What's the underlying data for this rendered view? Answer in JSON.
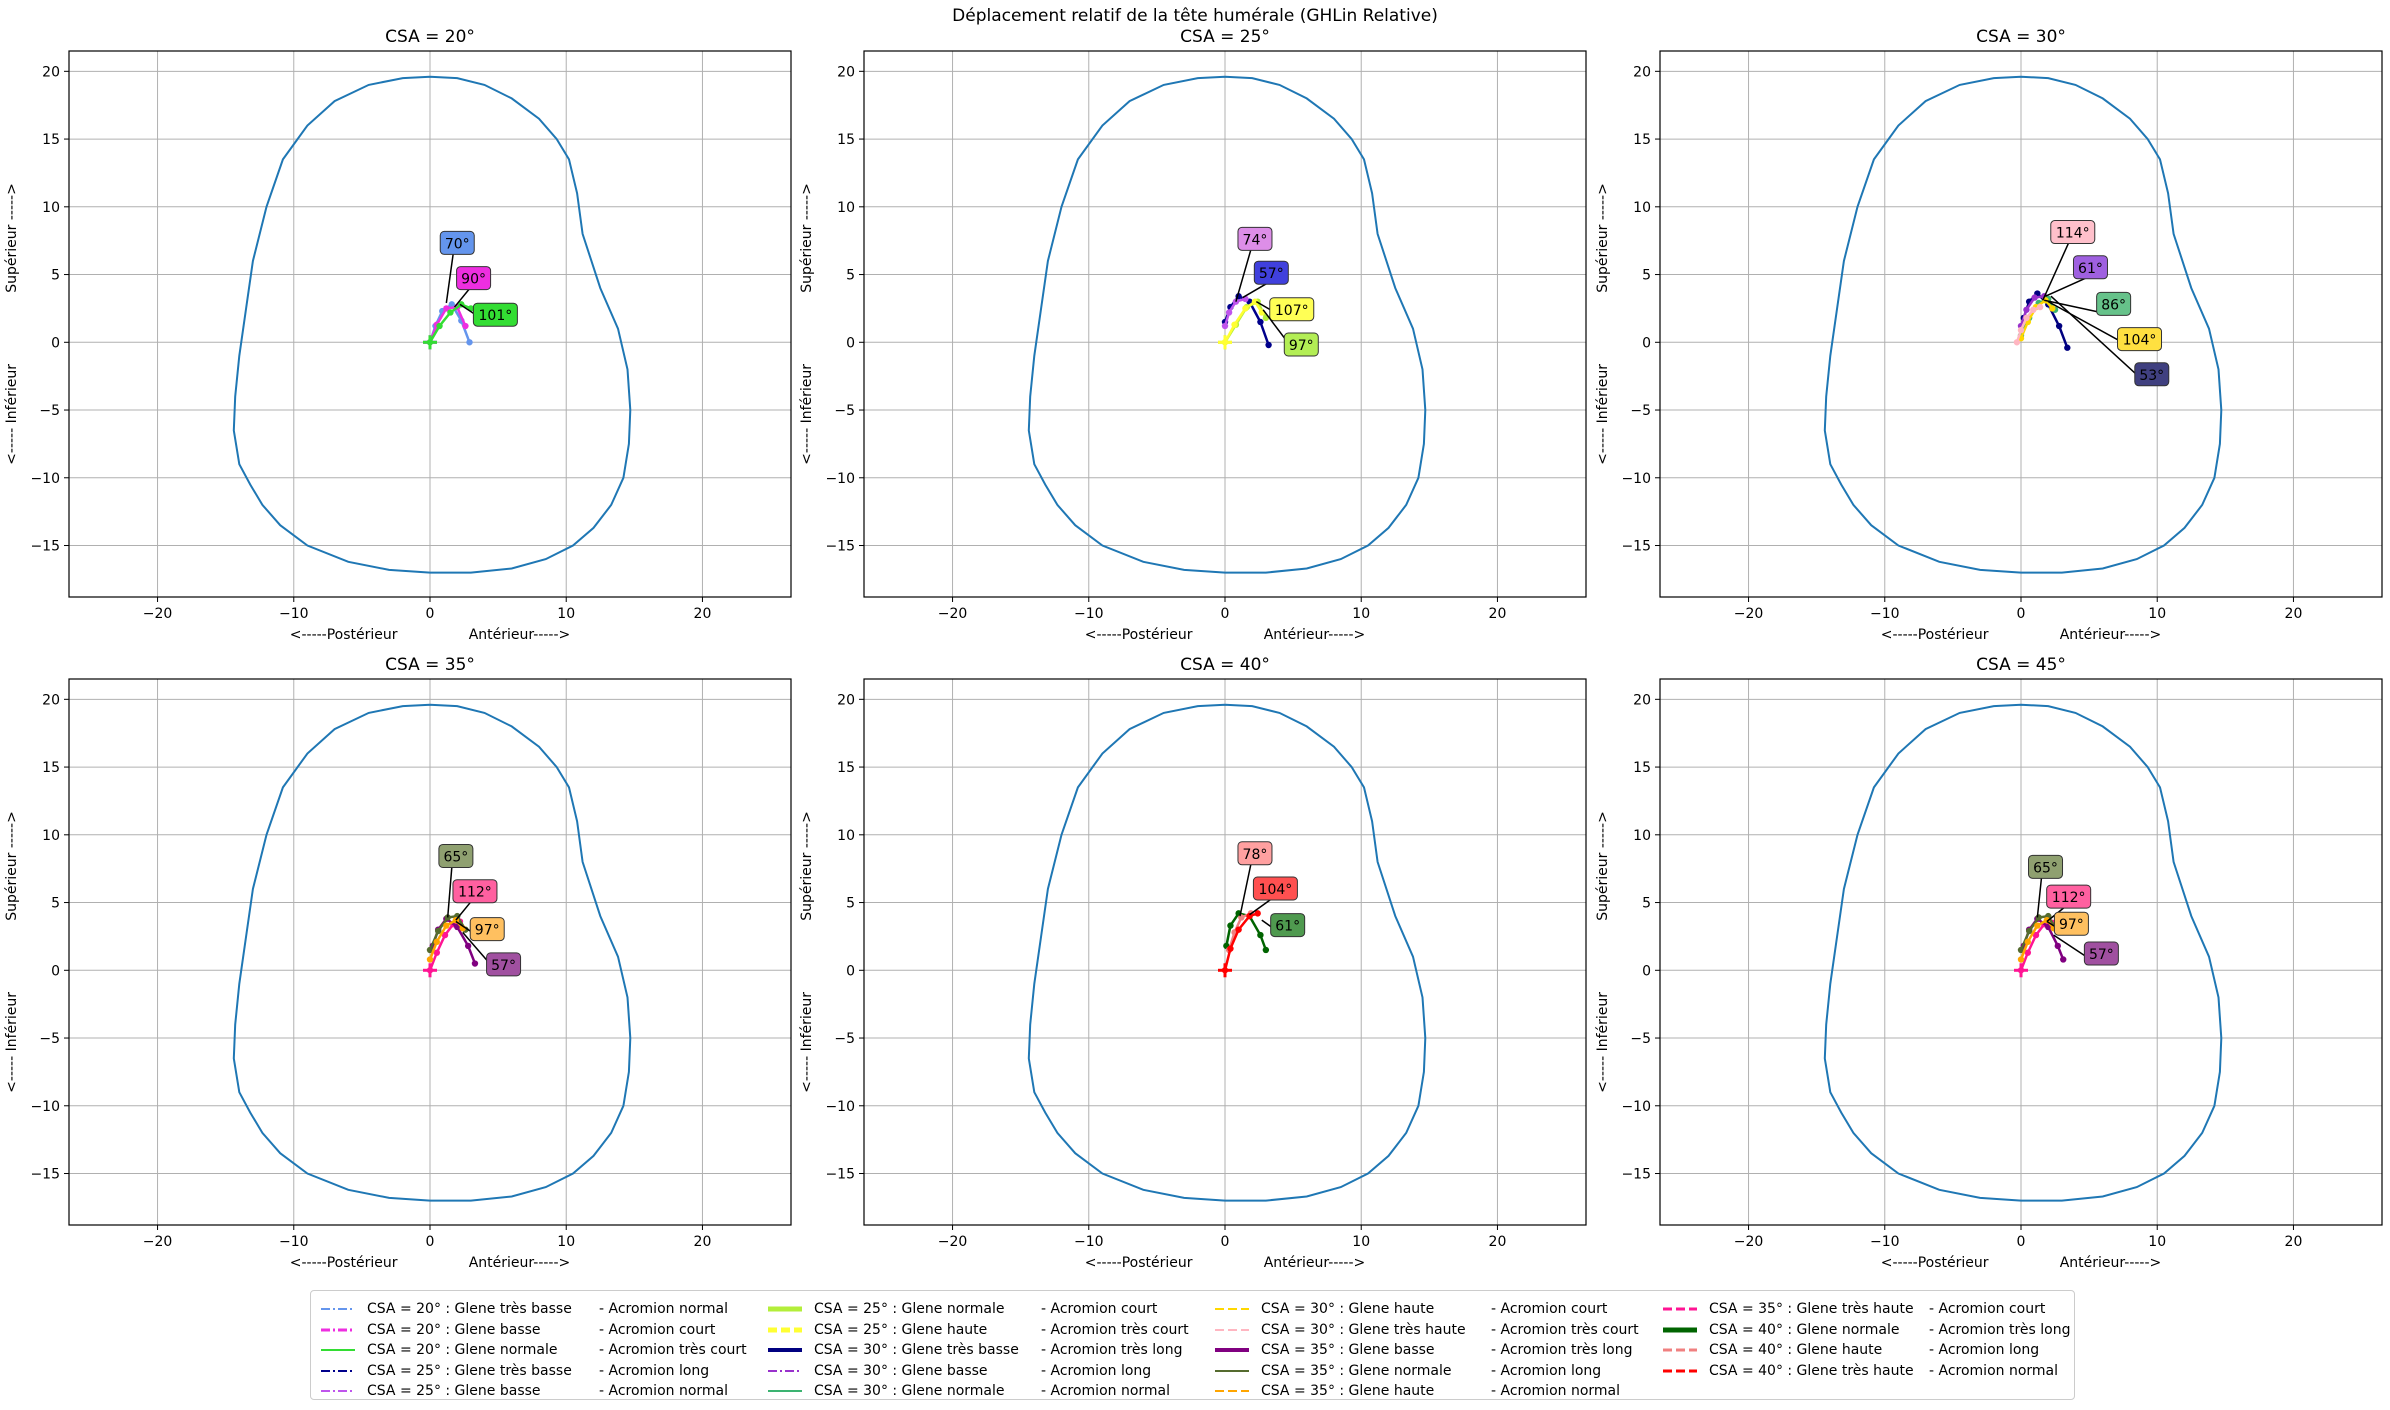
{
  "figure": {
    "title": "Déplacement relatif de la tête humérale (GHLin Relative)",
    "outline_color": "#1f77b4"
  },
  "chart_data": [
    {
      "type": "line",
      "title": "CSA = 20°",
      "xlabel": "<-----Postérieur                Antérieur----->",
      "ylabel": "<----- Inférieur                Supérieur ----->",
      "xlim": [
        -26.5,
        26.5
      ],
      "ylim": [
        -18.8,
        21.5
      ],
      "xticks": [
        -20,
        -10,
        0,
        10,
        20
      ],
      "yticks": [
        -15,
        -10,
        -5,
        0,
        5,
        10,
        15,
        20
      ],
      "grid": true,
      "series": [
        {
          "name": "CSA = 20° : Glene très basse",
          "color": "#6495ed",
          "x": [
            0,
            0.4,
            0.9,
            1.6,
            2.3,
            2.9
          ],
          "y": [
            0,
            1.2,
            2.3,
            2.8,
            1.6,
            0
          ]
        },
        {
          "name": "CSA = 20° : Glene basse",
          "color": "#ee2ee0",
          "x": [
            0,
            0.5,
            1.2,
            2.0,
            2.6
          ],
          "y": [
            0,
            1.3,
            2.5,
            2.6,
            1.2
          ]
        },
        {
          "name": "CSA = 20° : Glene normale",
          "color": "#33dd33",
          "x": [
            0,
            0.7,
            1.5,
            2.3,
            3.0
          ],
          "y": [
            0,
            1.2,
            2.2,
            2.8,
            2.5
          ]
        }
      ],
      "annotations": [
        {
          "label": "70°",
          "color": "#6495ed",
          "x": 2.0,
          "y": 7.3,
          "tx": 1.2,
          "ty": 2.9
        },
        {
          "label": "90°",
          "color": "#ee2ee0",
          "x": 3.2,
          "y": 4.7,
          "tx": 1.8,
          "ty": 2.6
        },
        {
          "label": "101°",
          "color": "#33dd33",
          "x": 4.8,
          "y": 2.0,
          "tx": 2.2,
          "ty": 2.8
        }
      ]
    },
    {
      "type": "line",
      "title": "CSA = 25°",
      "xlabel": "<-----Postérieur                Antérieur----->",
      "ylabel": "<----- Inférieur                Supérieur ----->",
      "xlim": [
        -26.5,
        26.5
      ],
      "ylim": [
        -18.8,
        21.5
      ],
      "xticks": [
        -20,
        -10,
        0,
        10,
        20
      ],
      "yticks": [
        -15,
        -10,
        -5,
        0,
        5,
        10,
        15,
        20
      ],
      "grid": true,
      "series": [
        {
          "name": "CSA = 25° : Glene très basse",
          "color": "#00008b",
          "x": [
            0,
            0.4,
            1.0,
            1.8,
            2.6,
            3.2
          ],
          "y": [
            1.5,
            2.6,
            3.4,
            3.0,
            1.5,
            -0.2
          ]
        },
        {
          "name": "CSA = 25° : Glene basse",
          "color": "#bf55ec",
          "x": [
            0,
            0.3,
            0.8,
            1.5
          ],
          "y": [
            1.2,
            2.2,
            3.0,
            3.2
          ]
        },
        {
          "name": "CSA = 25° : Glene normale",
          "color": "#b3ee3a",
          "x": [
            0,
            0.8,
            1.6,
            2.4,
            3.0
          ],
          "y": [
            0,
            1.3,
            2.6,
            3.0,
            1.8
          ]
        },
        {
          "name": "CSA = 25° : Glene haute",
          "color": "#ffff33",
          "x": [
            0,
            0.7,
            1.5,
            2.2,
            2.7
          ],
          "y": [
            0,
            1.3,
            2.5,
            3.0,
            2.2
          ]
        }
      ],
      "annotations": [
        {
          "label": "74°",
          "color": "#dd8ee8",
          "x": 2.2,
          "y": 7.6,
          "tx": 0.8,
          "ty": 3.0
        },
        {
          "label": "57°",
          "color": "#4040dd",
          "x": 3.4,
          "y": 5.1,
          "tx": 1.3,
          "ty": 3.3
        },
        {
          "label": "107°",
          "color": "#ffff55",
          "x": 4.9,
          "y": 2.4,
          "tx": 2.3,
          "ty": 3.0
        },
        {
          "label": "97°",
          "color": "#b3ee55",
          "x": 5.6,
          "y": -0.2,
          "tx": 2.8,
          "ty": 2.4
        }
      ]
    },
    {
      "type": "line",
      "title": "CSA = 30°",
      "xlabel": "<-----Postérieur                Antérieur----->",
      "ylabel": "<----- Inférieur                Supérieur ----->",
      "xlim": [
        -26.5,
        26.5
      ],
      "ylim": [
        -18.8,
        21.5
      ],
      "xticks": [
        -20,
        -10,
        0,
        10,
        20
      ],
      "yticks": [
        -15,
        -10,
        -5,
        0,
        5,
        10,
        15,
        20
      ],
      "grid": true,
      "series": [
        {
          "name": "CSA = 30° : Glene très basse",
          "color": "#000080",
          "x": [
            0.2,
            0.6,
            1.2,
            2.0,
            2.8,
            3.4
          ],
          "y": [
            1.8,
            3.0,
            3.6,
            2.8,
            1.2,
            -0.4
          ]
        },
        {
          "name": "CSA = 30° : Glene basse",
          "color": "#9932cc",
          "x": [
            0,
            0.4,
            1.0,
            1.7
          ],
          "y": [
            1.2,
            2.4,
            3.3,
            3.4
          ]
        },
        {
          "name": "CSA = 30° : Glene normale",
          "color": "#3cb371",
          "x": [
            0,
            0.6,
            1.3,
            2.0,
            2.5
          ],
          "y": [
            0.5,
            1.8,
            2.9,
            3.2,
            2.4
          ]
        },
        {
          "name": "CSA = 30° : Glene haute",
          "color": "#ffd700",
          "x": [
            0,
            0.5,
            1.1,
            1.8,
            2.3
          ],
          "y": [
            0.3,
            1.5,
            2.6,
            3.1,
            2.5
          ]
        },
        {
          "name": "CSA = 30° : Glene très haute",
          "color": "#ffb6c1",
          "x": [
            -0.3,
            0,
            0.4,
            0.9,
            1.4
          ],
          "y": [
            0,
            0.9,
            1.8,
            2.4,
            2.6
          ]
        }
      ],
      "annotations": [
        {
          "label": "114°",
          "color": "#ffc0cb",
          "x": 3.8,
          "y": 8.1,
          "tx": 1.6,
          "ty": 3.1
        },
        {
          "label": "61°",
          "color": "#9f60e0",
          "x": 5.1,
          "y": 5.5,
          "tx": 1.8,
          "ty": 3.4
        },
        {
          "label": "86°",
          "color": "#66c28a",
          "x": 6.8,
          "y": 2.8,
          "tx": 1.7,
          "ty": 3.1
        },
        {
          "label": "104°",
          "color": "#ffe040",
          "x": 8.7,
          "y": 0.2,
          "tx": 2.0,
          "ty": 3.0
        },
        {
          "label": "53°",
          "color": "#404080",
          "x": 9.6,
          "y": -2.4,
          "tx": 2.2,
          "ty": 3.4
        }
      ]
    },
    {
      "type": "line",
      "title": "CSA = 35°",
      "xlabel": "<-----Postérieur                Antérieur----->",
      "ylabel": "<----- Inférieur                Supérieur ----->",
      "xlim": [
        -26.5,
        26.5
      ],
      "ylim": [
        -18.8,
        21.5
      ],
      "xticks": [
        -20,
        -10,
        0,
        10,
        20
      ],
      "yticks": [
        -15,
        -10,
        -5,
        0,
        5,
        10,
        15,
        20
      ],
      "grid": true,
      "series": [
        {
          "name": "CSA = 35° : Glene très haute",
          "color": "#ff1493",
          "x": [
            0,
            0.5,
            1.1,
            1.7,
            2.2
          ],
          "y": [
            0,
            1.3,
            2.6,
            3.4,
            3.6
          ]
        },
        {
          "name": "CSA = 35° : Glene basse",
          "color": "#800080",
          "x": [
            0.2,
            0.6,
            1.2,
            2.0,
            2.8,
            3.3
          ],
          "y": [
            1.8,
            3.0,
            3.8,
            3.2,
            1.8,
            0.5
          ]
        },
        {
          "name": "CSA = 35° : Glene normale",
          "color": "#556b2f",
          "x": [
            0,
            0.6,
            1.3,
            2.0,
            2.6
          ],
          "y": [
            1.5,
            2.9,
            3.9,
            4.0,
            3.0
          ]
        },
        {
          "name": "CSA = 35° : Glene haute",
          "color": "#ffa500",
          "x": [
            0,
            0.5,
            1.2,
            1.9,
            2.4
          ],
          "y": [
            0.8,
            2.1,
            3.3,
            3.7,
            3.1
          ]
        }
      ],
      "annotations": [
        {
          "label": "65°",
          "color": "#8fa070",
          "x": 1.9,
          "y": 8.4,
          "tx": 1.3,
          "ty": 3.9
        },
        {
          "label": "112°",
          "color": "#ff60a0",
          "x": 3.3,
          "y": 5.8,
          "tx": 1.9,
          "ty": 3.7
        },
        {
          "label": "97°",
          "color": "#ffc060",
          "x": 4.2,
          "y": 3.0,
          "tx": 1.9,
          "ty": 3.6
        },
        {
          "label": "57°",
          "color": "#a050a0",
          "x": 5.4,
          "y": 0.4,
          "tx": 2.4,
          "ty": 2.8
        }
      ]
    },
    {
      "type": "line",
      "title": "CSA = 40°",
      "xlabel": "<-----Postérieur                Antérieur----->",
      "ylabel": "<----- Inférieur                Supérieur ----->",
      "xlim": [
        -26.5,
        26.5
      ],
      "ylim": [
        -18.8,
        21.5
      ],
      "xticks": [
        -20,
        -10,
        0,
        10,
        20
      ],
      "yticks": [
        -15,
        -10,
        -5,
        0,
        5,
        10,
        15,
        20
      ],
      "grid": true,
      "series": [
        {
          "name": "CSA = 40° : Glene normale",
          "color": "#006400",
          "x": [
            0.1,
            0.4,
            1.0,
            1.8,
            2.6,
            3.0
          ],
          "y": [
            1.8,
            3.3,
            4.2,
            4.0,
            2.6,
            1.5
          ]
        },
        {
          "name": "CSA = 40° : Glene haute",
          "color": "#f08080",
          "x": [
            0.3,
            0.7,
            1.2,
            1.9
          ],
          "y": [
            1.5,
            2.8,
            3.9,
            4.2
          ]
        },
        {
          "name": "CSA = 40° : Glene très haute",
          "color": "#ff0000",
          "x": [
            0,
            0.4,
            1.0,
            1.8,
            2.4
          ],
          "y": [
            0,
            1.6,
            3.0,
            4.0,
            4.2
          ]
        }
      ],
      "annotations": [
        {
          "label": "78°",
          "color": "#ffa0a0",
          "x": 2.2,
          "y": 8.6,
          "tx": 1.1,
          "ty": 4.0
        },
        {
          "label": "104°",
          "color": "#ff5050",
          "x": 3.7,
          "y": 6.0,
          "tx": 1.8,
          "ty": 4.1
        },
        {
          "label": "61°",
          "color": "#4f9a4f",
          "x": 4.6,
          "y": 3.3,
          "tx": 2.7,
          "ty": 3.7
        }
      ]
    },
    {
      "type": "line",
      "title": "CSA = 45°",
      "xlabel": "<-----Postérieur                Antérieur----->",
      "ylabel": "<----- Inférieur                Supérieur ----->",
      "xlim": [
        -26.5,
        26.5
      ],
      "ylim": [
        -18.8,
        21.5
      ],
      "xticks": [
        -20,
        -10,
        0,
        10,
        20
      ],
      "yticks": [
        -15,
        -10,
        -5,
        0,
        5,
        10,
        15,
        20
      ],
      "grid": true,
      "series": [
        {
          "name": "CSA = 45° : Glene très haute",
          "color": "#ff1493",
          "x": [
            0,
            0.5,
            1.1,
            1.7,
            2.3
          ],
          "y": [
            0,
            1.3,
            2.6,
            3.4,
            3.5
          ]
        },
        {
          "name": "CSA = 45° : Glene basse",
          "color": "#800080",
          "x": [
            0.2,
            0.6,
            1.2,
            2.0,
            2.7,
            3.1
          ],
          "y": [
            1.8,
            3.0,
            3.8,
            3.2,
            1.8,
            0.8
          ]
        },
        {
          "name": "CSA = 45° : Glene normale",
          "color": "#556b2f",
          "x": [
            0,
            0.6,
            1.3,
            2.0,
            2.6
          ],
          "y": [
            1.5,
            2.9,
            3.9,
            4.0,
            3.0
          ]
        },
        {
          "name": "CSA = 45° : Glene haute",
          "color": "#ffa500",
          "x": [
            0,
            0.5,
            1.2,
            1.9,
            2.4
          ],
          "y": [
            0.8,
            2.1,
            3.3,
            3.7,
            3.1
          ]
        }
      ],
      "annotations": [
        {
          "label": "65°",
          "color": "#8fa070",
          "x": 1.8,
          "y": 7.6,
          "tx": 1.2,
          "ty": 3.9
        },
        {
          "label": "112°",
          "color": "#ff60a0",
          "x": 3.5,
          "y": 5.4,
          "tx": 1.9,
          "ty": 3.6
        },
        {
          "label": "97°",
          "color": "#ffc060",
          "x": 3.7,
          "y": 3.4,
          "tx": 1.9,
          "ty": 3.6
        },
        {
          "label": "57°",
          "color": "#a050a0",
          "x": 5.9,
          "y": 1.2,
          "tx": 2.4,
          "ty": 2.6
        }
      ]
    }
  ],
  "outline": {
    "x": [
      0,
      2,
      4,
      6,
      8,
      9.3,
      10.2,
      10.8,
      11.2,
      12.5,
      13.8,
      14.5,
      14.7,
      14.6,
      14.2,
      13.3,
      12,
      10.5,
      8.5,
      6,
      3,
      0,
      -3,
      -6,
      -9,
      -11,
      -12.3,
      -13.2,
      -14,
      -14.4,
      -14.3,
      -14,
      -13.5,
      -13,
      -12,
      -10.8,
      -9,
      -7,
      -4.5,
      -2,
      0
    ],
    "y": [
      19.6,
      19.5,
      19.0,
      18.0,
      16.5,
      15.0,
      13.5,
      11.0,
      8.0,
      4.0,
      1.0,
      -2.0,
      -5.0,
      -7.5,
      -10.0,
      -12.0,
      -13.7,
      -15.0,
      -16.0,
      -16.7,
      -17.0,
      -17.0,
      -16.8,
      -16.2,
      -15.0,
      -13.5,
      -12.0,
      -10.5,
      -9.0,
      -6.5,
      -4.0,
      -1.0,
      2.5,
      6.0,
      10.0,
      13.5,
      16.0,
      17.8,
      19.0,
      19.5,
      19.6
    ]
  },
  "legend": {
    "entries": [
      {
        "label": "CSA = 20° : Glene très basse",
        "suffix": "-  Acromion normal",
        "color": "#6495ed",
        "style": "dashdot",
        "width": 2
      },
      {
        "label": "CSA = 20° : Glene basse",
        "suffix": "-  Acromion court",
        "color": "#ee2ee0",
        "style": "dashdot",
        "width": 3
      },
      {
        "label": "CSA = 20° : Glene normale",
        "suffix": "-  Acromion très court",
        "color": "#33dd33",
        "style": "solid",
        "width": 2
      },
      {
        "label": "CSA = 25° : Glene très basse",
        "suffix": "-  Acromion long",
        "color": "#00008b",
        "style": "dashdot",
        "width": 2
      },
      {
        "label": "CSA = 25° : Glene basse",
        "suffix": "-  Acromion normal",
        "color": "#bf55ec",
        "style": "dashdot",
        "width": 2
      },
      {
        "label": "CSA = 25° : Glene normale",
        "suffix": "-  Acromion court",
        "color": "#b3ee3a",
        "style": "solid",
        "width": 5
      },
      {
        "label": "CSA = 25° : Glene haute",
        "suffix": "-  Acromion très court",
        "color": "#ffff33",
        "style": "dashed",
        "width": 5
      },
      {
        "label": "CSA = 30° : Glene très basse",
        "suffix": "-  Acromion très long",
        "color": "#000080",
        "style": "solid",
        "width": 4
      },
      {
        "label": "CSA = 30° : Glene basse",
        "suffix": "-  Acromion long",
        "color": "#9932cc",
        "style": "dashdot",
        "width": 2
      },
      {
        "label": "CSA = 30° : Glene normale",
        "suffix": "-  Acromion normal",
        "color": "#3cb371",
        "style": "solid",
        "width": 2
      },
      {
        "label": "CSA = 30° : Glene haute",
        "suffix": "-  Acromion court",
        "color": "#ffd700",
        "style": "dashed",
        "width": 2
      },
      {
        "label": "CSA = 30° : Glene très haute",
        "suffix": "-  Acromion très court",
        "color": "#ffb6c1",
        "style": "dashed",
        "width": 2
      },
      {
        "label": "CSA = 35° : Glene basse",
        "suffix": "-  Acromion très long",
        "color": "#800080",
        "style": "solid",
        "width": 4
      },
      {
        "label": "CSA = 35° : Glene normale",
        "suffix": "-  Acromion long",
        "color": "#556b2f",
        "style": "solid",
        "width": 2
      },
      {
        "label": "CSA = 35° : Glene haute",
        "suffix": "-  Acromion normal",
        "color": "#ffa500",
        "style": "dashed",
        "width": 2
      },
      {
        "label": "CSA = 35° : Glene très haute",
        "suffix": "-  Acromion court",
        "color": "#ff1493",
        "style": "dashed",
        "width": 3
      },
      {
        "label": "CSA = 40° : Glene normale",
        "suffix": "-  Acromion très long",
        "color": "#006400",
        "style": "solid",
        "width": 5
      },
      {
        "label": "CSA = 40° : Glene haute",
        "suffix": "-  Acromion long",
        "color": "#f08080",
        "style": "dashed",
        "width": 3
      },
      {
        "label": "CSA = 40° : Glene très haute",
        "suffix": "-  Acromion normal",
        "color": "#ff0000",
        "style": "dashed",
        "width": 3
      }
    ]
  }
}
